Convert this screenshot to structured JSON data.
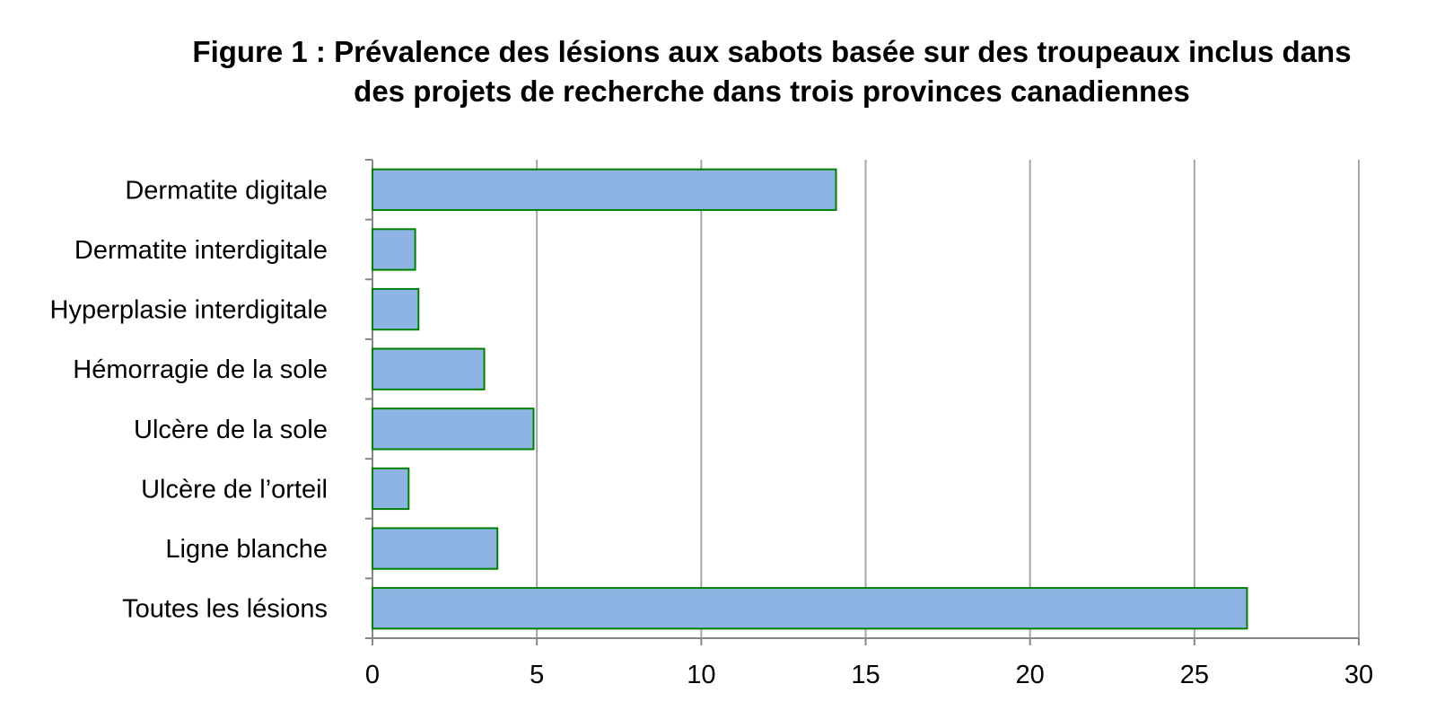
{
  "chart_data": {
    "type": "bar",
    "orientation": "horizontal",
    "title": "Figure 1 : Prévalence des lésions aux sabots basée sur des troupeaux inclus dans des projets de recherche dans trois provinces canadiennes",
    "categories": [
      "Dermatite digitale",
      "Dermatite interdigitale",
      "Hyperplasie interdigitale",
      "Hémorragie de la sole",
      "Ulcère de la sole",
      "Ulcère de l’orteil",
      "Ligne blanche",
      "Toutes les lésions"
    ],
    "values": [
      14.1,
      1.3,
      1.4,
      3.4,
      4.9,
      1.1,
      3.8,
      26.6
    ],
    "xlabel": "",
    "ylabel": "",
    "xlim": [
      0,
      30
    ],
    "xticks": [
      "0",
      "5",
      "10",
      "15",
      "20",
      "25",
      "30"
    ],
    "grid": "vertical",
    "legend": "none",
    "bar_fill": "#8eb4e3",
    "bar_stroke": "#008000",
    "grid_color": "#a6a6a6",
    "axis_color": "#868686"
  }
}
